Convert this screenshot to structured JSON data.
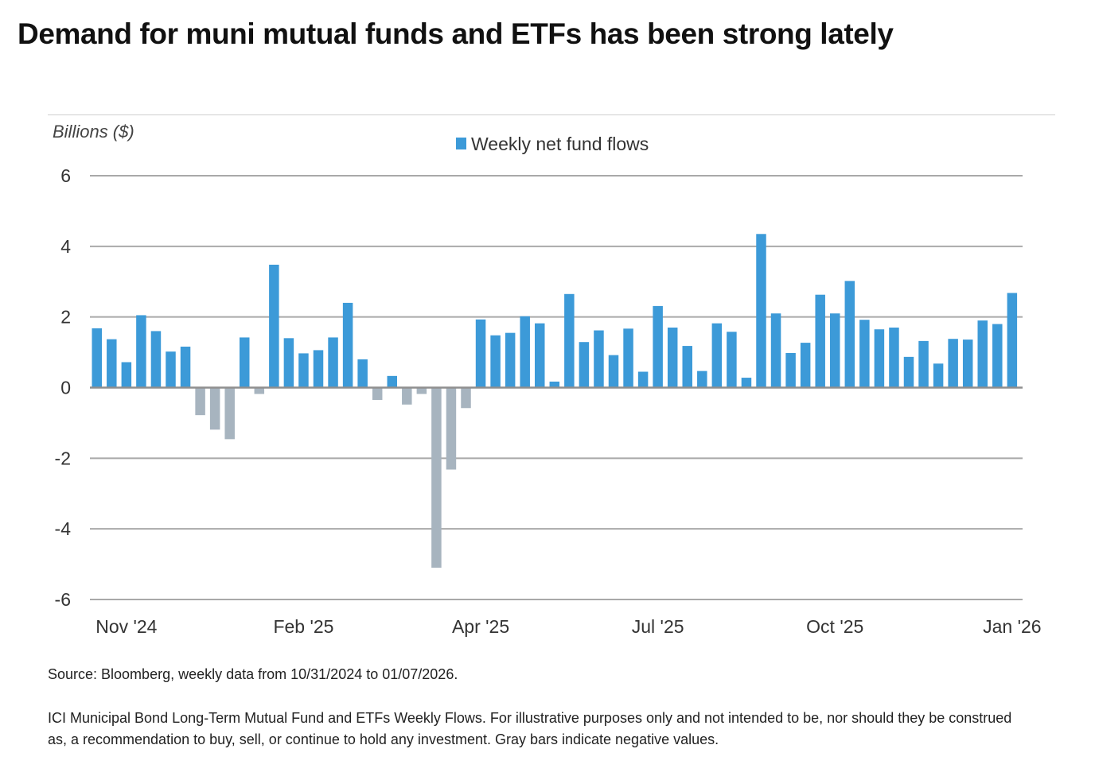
{
  "title": "Demand for muni mutual funds and ETFs has been strong lately",
  "source": "Source: Bloomberg, weekly data from 10/31/2024 to 01/07/2026.",
  "note": "ICI Municipal Bond Long-Term Mutual Fund and ETFs Weekly Flows. For illustrative purposes only and not intended to be, nor should they be construed as, a recommendation to buy, sell, or continue to hold any investment. Gray bars indicate negative values.",
  "colors": {
    "positive": "#3c9ad8",
    "negative": "#a7b4bf",
    "grid": "#a9a9a9",
    "text": "#333333"
  },
  "chart_data": {
    "type": "bar",
    "ylabel": "Billions ($)",
    "ylim": [
      -6,
      6
    ],
    "yticks": [
      6,
      4,
      2,
      0,
      -2,
      -4,
      -6
    ],
    "grid": true,
    "legend": {
      "position": "top-center"
    },
    "x_tick_labels": [
      {
        "label": "Nov '24",
        "week": 2
      },
      {
        "label": "Feb '25",
        "week": 14
      },
      {
        "label": "Apr '25",
        "week": 26
      },
      {
        "label": "Jul '25",
        "week": 38
      },
      {
        "label": "Oct '25",
        "week": 50
      },
      {
        "label": "Jan '26",
        "week": 62
      }
    ],
    "series": [
      {
        "name": "Weekly net fund flows",
        "values": [
          1.68,
          1.37,
          0.72,
          2.05,
          1.6,
          1.02,
          1.16,
          -0.78,
          -1.19,
          -1.46,
          1.42,
          -0.18,
          3.48,
          1.4,
          0.97,
          1.06,
          1.42,
          2.4,
          0.8,
          -0.35,
          0.33,
          -0.48,
          -0.18,
          -5.1,
          -2.32,
          -0.58,
          1.93,
          1.48,
          1.55,
          2.02,
          1.82,
          0.17,
          2.65,
          1.29,
          1.62,
          0.92,
          1.67,
          0.45,
          2.31,
          1.7,
          1.18,
          0.47,
          1.82,
          1.58,
          0.28,
          4.35,
          2.1,
          0.98,
          1.27,
          2.63,
          2.1,
          3.02,
          1.92,
          1.65,
          1.7,
          0.87,
          1.32,
          0.68,
          1.38,
          1.36,
          1.9,
          1.8,
          2.68
        ]
      }
    ]
  }
}
